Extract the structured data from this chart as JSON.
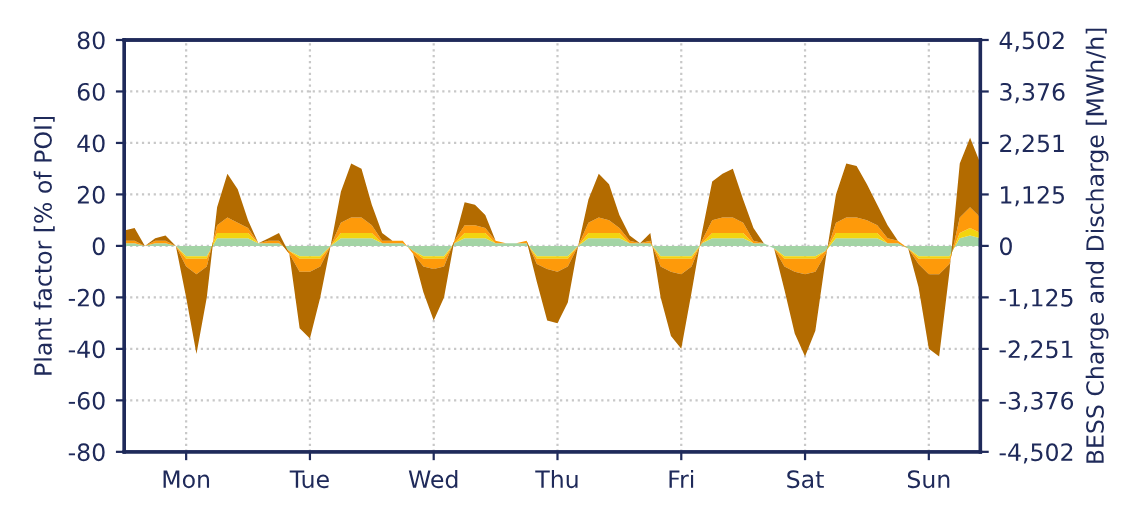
{
  "chart_data": {
    "type": "area",
    "stacked": true,
    "ylabel": "Plant factor [% of POI]",
    "y2label": "BESS Charge and Discharge [MWh/h]",
    "categories": [
      null,
      null,
      null,
      null,
      null,
      null,
      "Mon",
      null,
      null,
      null,
      null,
      null,
      null,
      null,
      null,
      null,
      null,
      null,
      "Tue",
      null,
      null,
      null,
      null,
      null,
      null,
      null,
      null,
      null,
      null,
      null,
      "Wed",
      null,
      null,
      null,
      null,
      null,
      null,
      null,
      null,
      null,
      null,
      null,
      "Thu",
      null,
      null,
      null,
      null,
      null,
      null,
      null,
      null,
      null,
      null,
      null,
      "Fri",
      null,
      null,
      null,
      null,
      null,
      null,
      null,
      null,
      null,
      null,
      null,
      "Sat",
      null,
      null,
      null,
      null,
      null,
      null,
      null,
      null,
      null,
      null,
      null,
      "Sun",
      null,
      null,
      null,
      null,
      null
    ],
    "series": [
      {
        "color": "#a3d4a5",
        "values": [
          1,
          1,
          0,
          1,
          1,
          0,
          -4,
          -4,
          -4,
          3,
          3,
          3,
          3,
          1,
          1,
          1,
          -2,
          -4,
          -4,
          -4,
          0,
          3,
          3,
          3,
          3,
          1,
          1,
          1,
          -2,
          -4,
          -4,
          -4,
          1,
          3,
          3,
          3,
          1,
          1,
          1,
          1,
          -4,
          -4,
          -4,
          -4,
          0,
          3,
          3,
          3,
          3,
          1,
          1,
          1,
          -4,
          -4,
          -4,
          -4,
          1,
          3,
          3,
          3,
          3,
          1,
          1,
          -1,
          -4,
          -4,
          -4,
          -4,
          -2,
          3,
          3,
          3,
          3,
          3,
          1,
          1,
          -1,
          -4,
          -4,
          -4,
          -4,
          3,
          4,
          3
        ]
      },
      {
        "color": "#f2d40f",
        "values": [
          0,
          0,
          0,
          0,
          0,
          0,
          -1,
          -1,
          -1,
          2,
          2,
          2,
          2,
          0,
          0,
          0,
          0,
          -1,
          -1,
          -1,
          0,
          2,
          2,
          2,
          2,
          0,
          0,
          0,
          0,
          -1,
          -1,
          -1,
          0,
          2,
          2,
          2,
          0,
          0,
          0,
          0,
          -1,
          -1,
          -1,
          -1,
          0,
          2,
          2,
          2,
          2,
          0,
          0,
          0,
          -1,
          -1,
          -1,
          -1,
          0,
          2,
          2,
          2,
          2,
          0,
          0,
          0,
          -1,
          -1,
          -1,
          -1,
          0,
          2,
          2,
          2,
          2,
          2,
          0,
          0,
          0,
          -1,
          -1,
          -1,
          -1,
          2,
          3,
          2
        ]
      },
      {
        "color": "#fe9a0a",
        "values": [
          1,
          1,
          0,
          1,
          1,
          0,
          -3,
          -6,
          -3,
          3,
          6,
          4,
          2,
          0,
          1,
          1,
          -1,
          -5,
          -5,
          -3,
          0,
          4,
          6,
          6,
          3,
          1,
          1,
          1,
          -1,
          -3,
          -4,
          -3,
          1,
          3,
          3,
          2,
          1,
          0,
          0,
          1,
          -2,
          -4,
          -5,
          -3,
          0,
          4,
          6,
          5,
          2,
          1,
          0,
          1,
          -3,
          -5,
          -6,
          -3,
          1,
          5,
          6,
          6,
          4,
          1,
          0,
          0,
          -3,
          -5,
          -6,
          -5,
          -1,
          4,
          6,
          6,
          5,
          3,
          2,
          1,
          0,
          -2,
          -6,
          -6,
          -2,
          6,
          8,
          6
        ]
      },
      {
        "color": "#b36b00",
        "values": [
          4,
          5,
          0,
          1,
          2,
          0,
          -12,
          -31,
          -12,
          7,
          17,
          13,
          3,
          0,
          1,
          3,
          0,
          -22,
          -26,
          -12,
          0,
          12,
          21,
          19,
          8,
          3,
          0,
          0,
          0,
          -10,
          -20,
          -12,
          0,
          9,
          8,
          5,
          0,
          0,
          0,
          0,
          -7,
          -20,
          -20,
          -14,
          0,
          9,
          17,
          14,
          5,
          2,
          0,
          3,
          -12,
          -25,
          -29,
          -10,
          3,
          15,
          17,
          19,
          9,
          5,
          0,
          0,
          -9,
          -24,
          -32,
          -23,
          -2,
          11,
          21,
          20,
          14,
          8,
          5,
          0,
          0,
          -9,
          -29,
          -32,
          -3,
          21,
          27,
          21
        ]
      }
    ],
    "ylim": [
      -80,
      80
    ],
    "yticks": [
      -80,
      -60,
      -40,
      -20,
      0,
      20,
      40,
      60,
      80
    ],
    "y2lim": [
      -4502,
      4502
    ],
    "y2ticks": [
      {
        "value": -4502,
        "label": "-4,502"
      },
      {
        "value": -3376,
        "label": "-3,376"
      },
      {
        "value": -2251,
        "label": "-2,251"
      },
      {
        "value": -1125,
        "label": "-1,125"
      },
      0,
      {
        "value": 1125,
        "label": "1,125"
      },
      {
        "value": 2251,
        "label": "2,251"
      },
      {
        "value": 3376,
        "label": "3,376"
      },
      {
        "value": 4502,
        "label": "4,502"
      }
    ],
    "grid": true,
    "legend": false
  }
}
